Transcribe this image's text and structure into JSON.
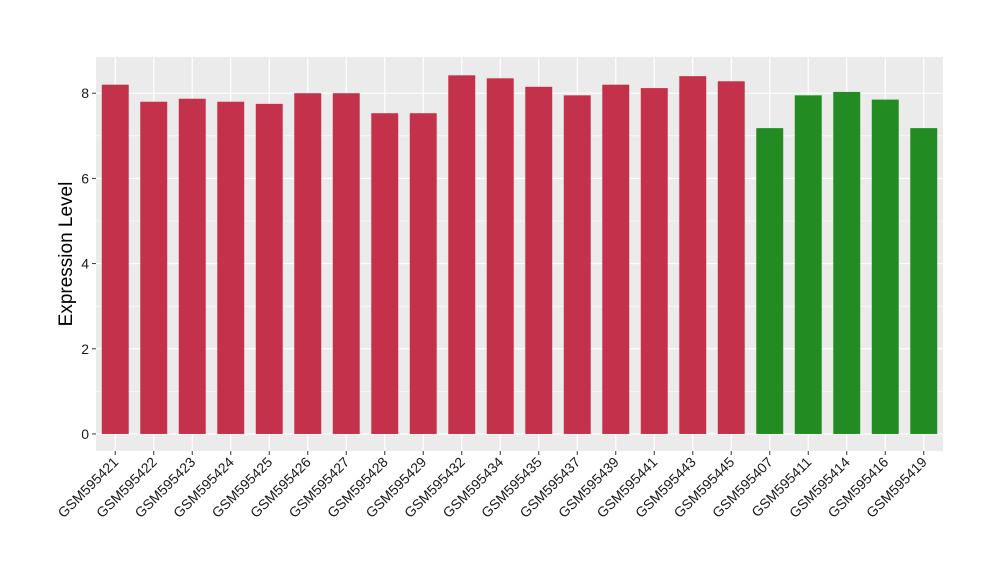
{
  "chart_data": {
    "type": "bar",
    "title": "",
    "xlabel": "",
    "ylabel": "Expression Level",
    "ylim": [
      -0.4,
      8.85
    ],
    "yticks": [
      0,
      2,
      4,
      6,
      8
    ],
    "grid": true,
    "legend": "none",
    "categories": [
      "GSM595421",
      "GSM595422",
      "GSM595423",
      "GSM595424",
      "GSM595425",
      "GSM595426",
      "GSM595427",
      "GSM595428",
      "GSM595429",
      "GSM595432",
      "GSM595434",
      "GSM595435",
      "GSM595437",
      "GSM595439",
      "GSM595441",
      "GSM595443",
      "GSM595445",
      "GSM595407",
      "GSM595411",
      "GSM595414",
      "GSM595416",
      "GSM595419"
    ],
    "values": [
      8.2,
      7.8,
      7.87,
      7.8,
      7.75,
      8.0,
      8.0,
      7.53,
      7.53,
      8.42,
      8.35,
      8.15,
      7.95,
      8.2,
      8.12,
      8.4,
      8.28,
      7.18,
      7.95,
      8.03,
      7.85,
      7.18
    ],
    "groups": [
      "a",
      "a",
      "a",
      "a",
      "a",
      "a",
      "a",
      "a",
      "a",
      "a",
      "a",
      "a",
      "a",
      "a",
      "a",
      "a",
      "a",
      "b",
      "b",
      "b",
      "b",
      "b"
    ],
    "colors": {
      "a": "#C4314B",
      "b": "#228B22"
    },
    "panel_background": "#EBEBEB",
    "grid_color": "#FFFFFF"
  }
}
